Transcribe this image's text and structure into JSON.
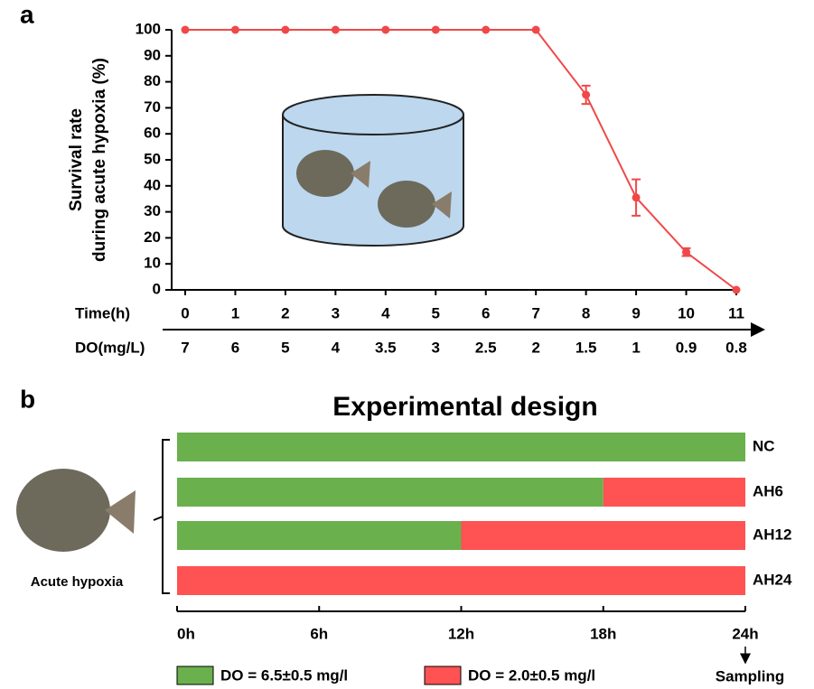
{
  "chart_data": [
    {
      "type": "line",
      "panel_label": "a",
      "y_label": [
        "Survival rate",
        "during acute hypoxia (%)"
      ],
      "x_label": "Time(h)",
      "x": [
        0,
        1,
        2,
        3,
        4,
        5,
        6,
        7,
        8,
        9,
        10,
        11
      ],
      "xlim": [
        0,
        11
      ],
      "xticks": [
        0,
        1,
        2,
        3,
        4,
        5,
        6,
        7,
        8,
        9,
        10,
        11
      ],
      "ylim": [
        0,
        100
      ],
      "yticks": [
        0,
        10,
        20,
        30,
        40,
        50,
        60,
        70,
        80,
        90,
        100
      ],
      "series": [
        {
          "color": "#f04848",
          "values": [
            100,
            100,
            100,
            100,
            100,
            100,
            100,
            100,
            75,
            35.5,
            14.5,
            0
          ],
          "errors": [
            null,
            null,
            null,
            null,
            null,
            null,
            null,
            null,
            3.5,
            7,
            1.5,
            null
          ]
        }
      ],
      "secondary_x_label": "DO(mg/L)",
      "secondary_x_values": [
        7,
        6,
        5,
        4,
        3.5,
        3,
        2.5,
        2,
        1.5,
        1,
        0.9,
        0.8
      ]
    },
    {
      "type": "stacked_barh",
      "panel_label": "b",
      "title": "Experimental design",
      "categories": [
        "NC",
        "AH6",
        "AH12",
        "AH24"
      ],
      "series": [
        {
          "name": "DO = 6.5±0.5 mg/l",
          "color": "#6ab04c",
          "values": [
            24,
            18,
            12,
            0
          ]
        },
        {
          "name": "DO = 2.0±0.5 mg/l",
          "color": "#ff5252",
          "values": [
            0,
            6,
            12,
            24
          ]
        }
      ],
      "xlim": [
        0,
        24
      ],
      "xticks": [
        {
          "value": 0,
          "label": "0h"
        },
        {
          "value": 6,
          "label": "6h"
        },
        {
          "value": 12,
          "label": "12h"
        },
        {
          "value": 18,
          "label": "18h"
        },
        {
          "value": 24,
          "label": "24h"
        }
      ],
      "side_label": "Acute hypoxia",
      "annotation": "Sampling"
    }
  ]
}
